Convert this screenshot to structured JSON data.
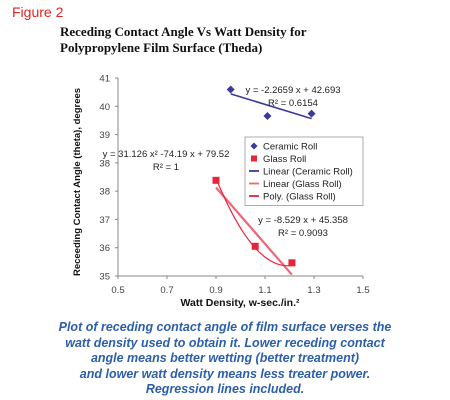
{
  "figure_label": "Figure 2",
  "caption_lines": [
    "Plot of receding contact angle of film surface verses the",
    "watt density used to obtain it.  Lower receding contact",
    "angle means better wetting (better treatment)",
    "and lower watt density means less treater power.",
    "Regression lines included."
  ],
  "colors": {
    "ceramic": "#3a3a9a",
    "glass": "#e8243c",
    "glass_poly": "#e8243c",
    "glass_linear": "#ee6677",
    "axis": "#888888",
    "text": "#111111"
  },
  "chart_data": {
    "type": "scatter",
    "title_lines": [
      "Receding Contact Angle Vs Watt Density for",
      "Polypropylene Film Surface (Theda)"
    ],
    "xlabel": "Watt Density, w-sec./in.²",
    "ylabel": "Receeding Contact Angle (theta), degrees",
    "xlim": [
      0.5,
      1.5
    ],
    "ylim": [
      35,
      41
    ],
    "x_ticks": [
      "0.5",
      "0.7",
      "0.9",
      "1.1",
      "1.3",
      "1.5"
    ],
    "y_ticks": [
      "35",
      "36",
      "37",
      "38",
      "38",
      "39",
      "40",
      "41"
    ],
    "grid": false,
    "legend_position": "right",
    "series": [
      {
        "name": "Ceramic Roll",
        "marker": "diamond",
        "x": [
          0.96,
          1.11,
          1.29
        ],
        "y": [
          40.65,
          39.85,
          39.92
        ]
      },
      {
        "name": "Glass Roll",
        "marker": "square",
        "x": [
          0.9,
          1.06,
          1.21
        ],
        "y": [
          37.9,
          35.9,
          35.4
        ]
      }
    ],
    "fits": [
      {
        "name": "Linear (Ceramic Roll)",
        "kind": "linear",
        "coef": [
          -2.2659,
          42.693
        ],
        "x_range": [
          0.96,
          1.29
        ]
      },
      {
        "name": "Linear (Glass Roll)",
        "kind": "linear",
        "coef": [
          -8.529,
          45.358
        ],
        "x_range": [
          0.9,
          1.21
        ]
      },
      {
        "name": "Poly. (Glass Roll)",
        "kind": "poly2",
        "coef": [
          31.126,
          -74.19,
          79.52
        ],
        "x_range": [
          0.9,
          1.21
        ]
      }
    ],
    "legend": [
      "Ceramic Roll",
      "Glass Roll",
      "Linear (Ceramic Roll)",
      "Linear (Glass Roll)",
      "Poly. (Glass Roll)"
    ],
    "annotations": [
      {
        "lines": [
          "y = -2.2659 x + 42.693",
          "R² = 0.6154"
        ]
      },
      {
        "lines": [
          "y = 31.126 x² -74.19 x + 79.52",
          "R² = 1"
        ]
      },
      {
        "lines": [
          "y = -8.529 x + 45.358",
          "R² = 0.9093"
        ]
      }
    ]
  }
}
